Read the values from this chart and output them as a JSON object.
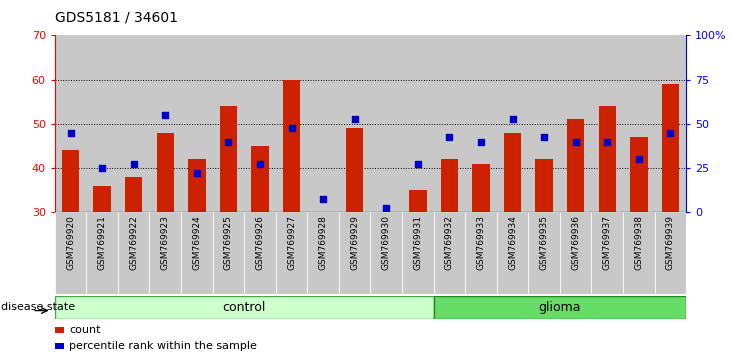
{
  "title": "GDS5181 / 34601",
  "samples": [
    "GSM769920",
    "GSM769921",
    "GSM769922",
    "GSM769923",
    "GSM769924",
    "GSM769925",
    "GSM769926",
    "GSM769927",
    "GSM769928",
    "GSM769929",
    "GSM769930",
    "GSM769931",
    "GSM769932",
    "GSM769933",
    "GSM769934",
    "GSM769935",
    "GSM769936",
    "GSM769937",
    "GSM769938",
    "GSM769939"
  ],
  "bar_values": [
    44,
    36,
    38,
    48,
    42,
    54,
    45,
    60,
    30,
    49,
    30,
    35,
    42,
    41,
    48,
    42,
    51,
    54,
    47,
    59
  ],
  "dot_values": [
    48,
    40,
    41,
    52,
    39,
    46,
    41,
    49,
    33,
    51,
    31,
    41,
    47,
    46,
    51,
    47,
    46,
    46,
    42,
    48
  ],
  "bar_color": "#cc2200",
  "dot_color": "#0000cc",
  "control_count": 12,
  "glioma_count": 8,
  "ylim_left": [
    30,
    70
  ],
  "ylim_right": [
    0,
    100
  ],
  "yticks_left": [
    30,
    40,
    50,
    60,
    70
  ],
  "yticks_right": [
    0,
    25,
    50,
    75,
    100
  ],
  "yticklabels_right": [
    "0",
    "25",
    "50",
    "75",
    "100%"
  ],
  "bar_bottom": 30,
  "control_color_light": "#ccffcc",
  "control_color_border": "#44aa44",
  "glioma_color": "#66dd66",
  "glioma_color_border": "#228822",
  "col_bg_color": "#c8c8c8",
  "label_count": "count",
  "label_percentile": "percentile rank within the sample",
  "xlabel_disease": "disease state"
}
